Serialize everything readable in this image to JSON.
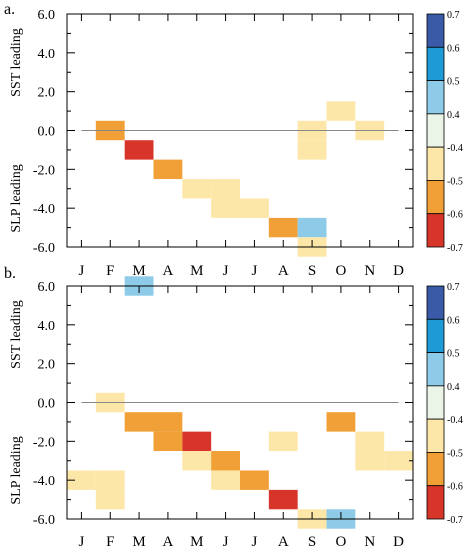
{
  "chart_data": [
    {
      "type": "heatmap",
      "panel_label": "a.",
      "xlabel": "",
      "ylabel_top": "SST leading",
      "ylabel_bottom": "SLP leading",
      "categories": [
        "J",
        "F",
        "M",
        "A",
        "M",
        "J",
        "J",
        "A",
        "S",
        "O",
        "N",
        "D"
      ],
      "y_ticks": [
        "6.0",
        "4.0",
        "2.0",
        "0.0",
        "-2.0",
        "-4.0",
        "-6.0"
      ],
      "ylim": [
        -6,
        6
      ],
      "y_cell_size": 1,
      "zero_line": true,
      "cells": [
        {
          "month": "F",
          "y": 0,
          "bin": 5
        },
        {
          "month": "M",
          "y": -1,
          "bin": 6
        },
        {
          "month": "A",
          "y": -2,
          "bin": 5
        },
        {
          "month": "M",
          "y": -3,
          "bin": 4
        },
        {
          "month": "J",
          "y": -3,
          "bin": 4
        },
        {
          "month": "J",
          "y": -4,
          "bin": 4
        },
        {
          "month": "J",
          "y": -4,
          "bin": 4
        },
        {
          "month": "A",
          "y": -5,
          "bin": 5
        },
        {
          "month": "S",
          "y": -5,
          "bin": 2
        },
        {
          "month": "S",
          "y": -6,
          "bin": 4
        },
        {
          "month": "S",
          "y": 0,
          "bin": 4
        },
        {
          "month": "S",
          "y": -1,
          "bin": 4
        },
        {
          "month": "O",
          "y": 1,
          "bin": 4
        },
        {
          "month": "N",
          "y": 0,
          "bin": 4
        }
      ]
    },
    {
      "type": "heatmap",
      "panel_label": "b.",
      "xlabel": "",
      "ylabel_top": "SST leading",
      "ylabel_bottom": "SLP leading",
      "categories": [
        "J",
        "F",
        "M",
        "A",
        "M",
        "J",
        "J",
        "A",
        "S",
        "O",
        "N",
        "D"
      ],
      "y_ticks": [
        "6.0",
        "4.0",
        "2.0",
        "0.0",
        "-2.0",
        "-4.0",
        "-6.0"
      ],
      "ylim": [
        -6,
        6
      ],
      "y_cell_size": 1,
      "zero_line": true,
      "cells": [
        {
          "month": "M",
          "y": 6,
          "bin": 2
        },
        {
          "month": "F",
          "y": 0,
          "bin": 4
        },
        {
          "month": "M",
          "y": -1,
          "bin": 5
        },
        {
          "month": "A",
          "y": -1,
          "bin": 5
        },
        {
          "month": "A",
          "y": -2,
          "bin": 5
        },
        {
          "month": "M",
          "y": -2,
          "bin": 6
        },
        {
          "month": "M",
          "y": -3,
          "bin": 4
        },
        {
          "month": "J",
          "y": -3,
          "bin": 5
        },
        {
          "month": "J",
          "y": -4,
          "bin": 4
        },
        {
          "month": "J",
          "y": -4,
          "bin": 5
        },
        {
          "month": "A",
          "y": -2,
          "bin": 4
        },
        {
          "month": "A",
          "y": -5,
          "bin": 6
        },
        {
          "month": "S",
          "y": -6,
          "bin": 4
        },
        {
          "month": "O",
          "y": -6,
          "bin": 2
        },
        {
          "month": "O",
          "y": -1,
          "bin": 5
        },
        {
          "month": "N",
          "y": -2,
          "bin": 4
        },
        {
          "month": "N",
          "y": -3,
          "bin": 4
        },
        {
          "month": "D",
          "y": -3,
          "bin": 4
        },
        {
          "month": "J",
          "y": -4,
          "bin": 4
        },
        {
          "month": "F",
          "y": -4,
          "bin": 4
        },
        {
          "month": "F",
          "y": -5,
          "bin": 4
        }
      ]
    }
  ],
  "colorbar": {
    "labels": [
      "0.7",
      "0.6",
      "0.5",
      "0.4",
      "-0.4",
      "-0.5",
      "-0.6",
      "-0.7"
    ],
    "colors": [
      "#3a5aa8",
      "#1e9ad6",
      "#8ecbe8",
      "#eaf4e7",
      "#fde7a8",
      "#f0a036",
      "#d8352a"
    ]
  }
}
